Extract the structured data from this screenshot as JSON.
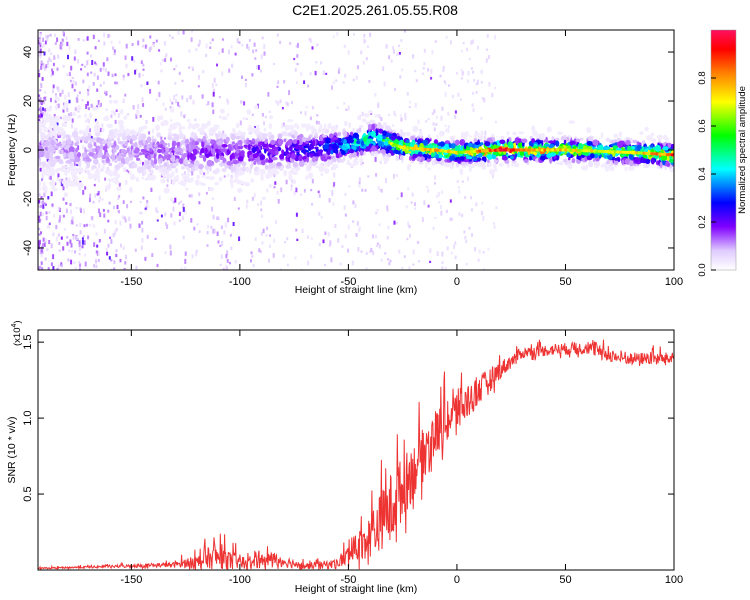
{
  "title": "C2E1.2025.261.05.55.R08",
  "chart_data": [
    {
      "type": "heatmap",
      "name": "spectrogram",
      "xlabel": "Height of straight line (km)",
      "ylabel": "Frequency (Hz)",
      "xlim": [
        -193,
        100
      ],
      "ylim": [
        -49,
        49
      ],
      "xticks": [
        -150,
        -100,
        -50,
        0,
        50,
        100
      ],
      "yticks": [
        -40,
        -20,
        0,
        20,
        40
      ],
      "colorbar": {
        "label": "Normalized spectral amplitude",
        "range": [
          0,
          1
        ],
        "ticks": [
          "0.0",
          "0.2",
          "0.4",
          "0.6",
          "0.8"
        ],
        "colormap": [
          "#ffffff",
          "#cc99ff",
          "#8000ff",
          "#0000ff",
          "#00ffff",
          "#00ff00",
          "#ffff00",
          "#ff8000",
          "#ff0000"
        ]
      },
      "ridge": {
        "points": [
          {
            "x": -190,
            "f": 0,
            "amp": 0.12,
            "bw": 7
          },
          {
            "x": -140,
            "f": -1,
            "amp": 0.15,
            "bw": 7
          },
          {
            "x": -100,
            "f": -1,
            "amp": 0.22,
            "bw": 6
          },
          {
            "x": -70,
            "f": 0,
            "amp": 0.3,
            "bw": 5
          },
          {
            "x": -50,
            "f": 2,
            "amp": 0.45,
            "bw": 4
          },
          {
            "x": -38,
            "f": 5,
            "amp": 0.55,
            "bw": 4
          },
          {
            "x": -25,
            "f": 1,
            "amp": 0.75,
            "bw": 3
          },
          {
            "x": -10,
            "f": 0,
            "amp": 0.8,
            "bw": 3
          },
          {
            "x": 0,
            "f": -1,
            "amp": 0.7,
            "bw": 3
          },
          {
            "x": 20,
            "f": 0,
            "amp": 0.95,
            "bw": 3
          },
          {
            "x": 50,
            "f": 0,
            "amp": 0.75,
            "bw": 3
          },
          {
            "x": 80,
            "f": -1,
            "amp": 0.7,
            "bw": 3
          },
          {
            "x": 100,
            "f": -2,
            "amp": 0.9,
            "bw": 3
          }
        ]
      }
    },
    {
      "type": "line",
      "name": "snr",
      "xlabel": "Height of straight line (km)",
      "ylabel": "SNR (10 * v/v)",
      "exponent_label": "(x10",
      "exponent": "4",
      "ylim": [
        0,
        1.58
      ],
      "xlim": [
        -193,
        100
      ],
      "xticks": [
        -150,
        -100,
        -50,
        0,
        50,
        100
      ],
      "yticks": [
        "0.5",
        "1.0",
        "1.5"
      ],
      "ytick_values": [
        0.5,
        1.0,
        1.5
      ],
      "color": "#ee3333",
      "envelope": [
        {
          "x": -193,
          "base": 0.01,
          "spread": 0.01
        },
        {
          "x": -160,
          "base": 0.02,
          "spread": 0.02
        },
        {
          "x": -130,
          "base": 0.03,
          "spread": 0.04
        },
        {
          "x": -110,
          "base": 0.06,
          "spread": 0.2
        },
        {
          "x": -95,
          "base": 0.03,
          "spread": 0.08
        },
        {
          "x": -85,
          "base": 0.06,
          "spread": 0.12
        },
        {
          "x": -70,
          "base": 0.02,
          "spread": 0.05
        },
        {
          "x": -55,
          "base": 0.03,
          "spread": 0.08
        },
        {
          "x": -48,
          "base": 0.1,
          "spread": 0.2
        },
        {
          "x": -40,
          "base": 0.18,
          "spread": 0.35
        },
        {
          "x": -30,
          "base": 0.35,
          "spread": 0.6
        },
        {
          "x": -20,
          "base": 0.6,
          "spread": 0.45
        },
        {
          "x": -10,
          "base": 0.85,
          "spread": 0.4
        },
        {
          "x": 0,
          "base": 1.0,
          "spread": 0.35
        },
        {
          "x": 10,
          "base": 1.15,
          "spread": 0.25
        },
        {
          "x": 20,
          "base": 1.3,
          "spread": 0.15
        },
        {
          "x": 30,
          "base": 1.42,
          "spread": 0.08
        },
        {
          "x": 45,
          "base": 1.44,
          "spread": 0.1
        },
        {
          "x": 60,
          "base": 1.45,
          "spread": 0.1
        },
        {
          "x": 75,
          "base": 1.38,
          "spread": 0.1
        },
        {
          "x": 100,
          "base": 1.38,
          "spread": 0.1
        }
      ]
    }
  ]
}
